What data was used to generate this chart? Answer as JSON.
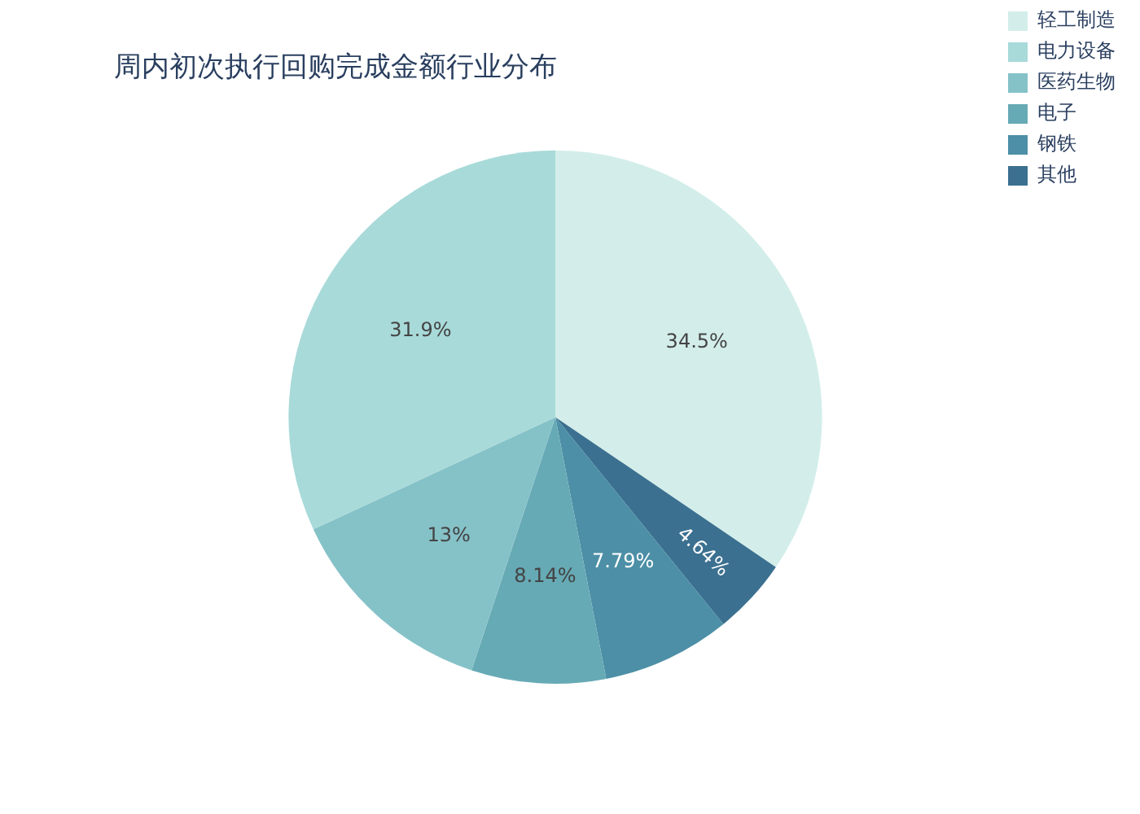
{
  "chart_data": {
    "type": "pie",
    "title": "周内初次执行回购完成金额行业分布",
    "categories": [
      "轻工制造",
      "电力设备",
      "医药生物",
      "电子",
      "钢铁",
      "其他"
    ],
    "values": [
      34.5,
      31.9,
      13,
      8.14,
      7.79,
      4.64
    ],
    "colors": [
      "#d3eeea",
      "#a8dad9",
      "#85c2c8",
      "#66aab5",
      "#4c8fa6",
      "#3b7090"
    ],
    "value_labels": [
      "34.5%",
      "31.9%",
      "13%",
      "8.14%",
      "7.79%",
      "4.64%"
    ],
    "legend": "top right"
  }
}
